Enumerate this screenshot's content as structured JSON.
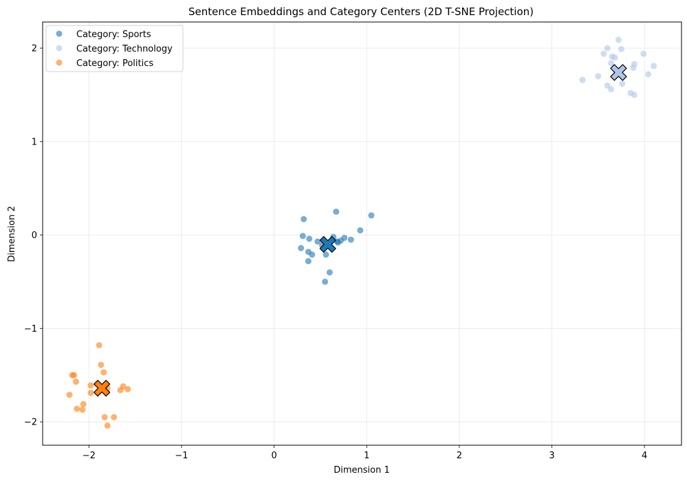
{
  "chart_data": {
    "type": "scatter",
    "title": "Sentence Embeddings and Category Centers (2D T-SNE Projection)",
    "xlabel": "Dimension 1",
    "ylabel": "Dimension 2",
    "xlim": [
      -2.5,
      4.4
    ],
    "ylim": [
      -2.25,
      2.28
    ],
    "xticks": [
      -2,
      -1,
      0,
      1,
      2,
      3,
      4
    ],
    "xtick_labels": [
      "−2",
      "−1",
      "0",
      "1",
      "2",
      "3",
      "4"
    ],
    "yticks": [
      -2,
      -1,
      0,
      1,
      2
    ],
    "ytick_labels": [
      "−2",
      "−1",
      "0",
      "1",
      "2"
    ],
    "grid": true,
    "legend_position": "top-left",
    "series": [
      {
        "name": "Category: Sports",
        "color": "#1f77b4",
        "opacity": 0.6,
        "points": [
          [
            0.32,
            0.17
          ],
          [
            0.67,
            0.25
          ],
          [
            1.05,
            0.21
          ],
          [
            0.31,
            -0.01
          ],
          [
            0.38,
            -0.04
          ],
          [
            0.47,
            -0.07
          ],
          [
            0.29,
            -0.14
          ],
          [
            0.37,
            -0.18
          ],
          [
            0.41,
            -0.21
          ],
          [
            0.56,
            -0.21
          ],
          [
            0.37,
            -0.28
          ],
          [
            0.6,
            -0.4
          ],
          [
            0.55,
            -0.5
          ],
          [
            0.64,
            -0.02
          ],
          [
            0.68,
            -0.07
          ],
          [
            0.72,
            -0.06
          ],
          [
            0.76,
            -0.03
          ],
          [
            0.83,
            -0.05
          ],
          [
            0.93,
            0.05
          ],
          [
            0.69,
            -0.08
          ],
          [
            0.58,
            -0.09
          ],
          [
            0.52,
            -0.11
          ]
        ],
        "center": [
          0.58,
          -0.1
        ]
      },
      {
        "name": "Category: Technology",
        "color": "#aec7e8",
        "opacity": 0.6,
        "points": [
          [
            3.72,
            2.09
          ],
          [
            3.6,
            2.0
          ],
          [
            3.75,
            1.99
          ],
          [
            3.56,
            1.94
          ],
          [
            3.65,
            1.91
          ],
          [
            3.68,
            1.9
          ],
          [
            3.64,
            1.84
          ],
          [
            3.89,
            1.83
          ],
          [
            3.88,
            1.79
          ],
          [
            4.1,
            1.81
          ],
          [
            3.99,
            1.94
          ],
          [
            3.5,
            1.7
          ],
          [
            4.04,
            1.72
          ],
          [
            3.33,
            1.66
          ],
          [
            3.76,
            1.62
          ],
          [
            3.6,
            1.6
          ],
          [
            3.64,
            1.56
          ],
          [
            3.85,
            1.52
          ],
          [
            3.89,
            1.5
          ],
          [
            3.7,
            1.75
          ]
        ],
        "center": [
          3.72,
          1.74
        ]
      },
      {
        "name": "Category: Politics",
        "color": "#ff7f0e",
        "opacity": 0.6,
        "points": [
          [
            -1.89,
            -1.18
          ],
          [
            -1.87,
            -1.39
          ],
          [
            -1.84,
            -1.47
          ],
          [
            -2.18,
            -1.5
          ],
          [
            -2.16,
            -1.5
          ],
          [
            -2.14,
            -1.57
          ],
          [
            -1.98,
            -1.61
          ],
          [
            -1.8,
            -1.64
          ],
          [
            -1.63,
            -1.62
          ],
          [
            -1.58,
            -1.65
          ],
          [
            -1.66,
            -1.66
          ],
          [
            -1.98,
            -1.69
          ],
          [
            -2.21,
            -1.71
          ],
          [
            -2.06,
            -1.81
          ],
          [
            -2.13,
            -1.86
          ],
          [
            -2.07,
            -1.87
          ],
          [
            -1.83,
            -1.95
          ],
          [
            -1.73,
            -1.95
          ],
          [
            -1.8,
            -2.04
          ]
        ],
        "center": [
          -1.86,
          -1.64
        ]
      }
    ]
  }
}
